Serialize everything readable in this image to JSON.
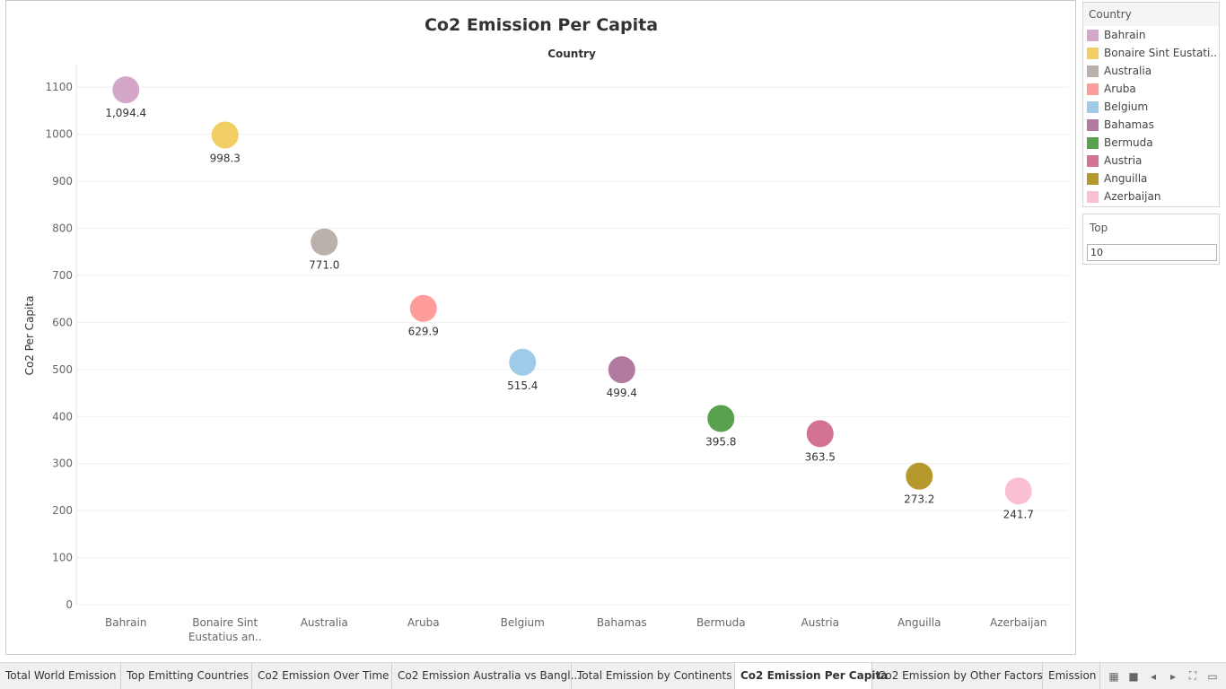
{
  "chart_data": {
    "type": "scatter",
    "title": "Co2 Emission Per Capita",
    "column_header": "Country",
    "ylabel": "Co2 Per Capita",
    "ylim": [
      0,
      1150
    ],
    "yticks": [
      0,
      100,
      200,
      300,
      400,
      500,
      600,
      700,
      800,
      900,
      1000,
      1100
    ],
    "categories": [
      "Bahrain",
      "Bonaire Sint Eustatius an..",
      "Australia",
      "Aruba",
      "Belgium",
      "Bahamas",
      "Bermuda",
      "Austria",
      "Anguilla",
      "Azerbaijan"
    ],
    "values": [
      1094.4,
      998.3,
      771.0,
      629.9,
      515.4,
      499.4,
      395.8,
      363.5,
      273.2,
      241.7
    ],
    "data_labels": [
      "1,094.4",
      "998.3",
      "771.0",
      "629.9",
      "515.4",
      "499.4",
      "395.8",
      "363.5",
      "273.2",
      "241.7"
    ],
    "colors": [
      "#d4a6c8",
      "#f1ce63",
      "#bab0ac",
      "#ff9d9a",
      "#a0cbe8",
      "#b07aa1",
      "#59a14f",
      "#d37295",
      "#b6992d",
      "#fabfd2"
    ],
    "grid": true
  },
  "legend": {
    "title": "Country",
    "items": [
      {
        "label": "Bahrain",
        "color": "#d4a6c8"
      },
      {
        "label": "Bonaire Sint Eustati..",
        "color": "#f1ce63"
      },
      {
        "label": "Australia",
        "color": "#bab0ac"
      },
      {
        "label": "Aruba",
        "color": "#ff9d9a"
      },
      {
        "label": "Belgium",
        "color": "#a0cbe8"
      },
      {
        "label": "Bahamas",
        "color": "#b07aa1"
      },
      {
        "label": "Bermuda",
        "color": "#59a14f"
      },
      {
        "label": "Austria",
        "color": "#d37295"
      },
      {
        "label": "Anguilla",
        "color": "#b6992d"
      },
      {
        "label": "Azerbaijan",
        "color": "#fabfd2"
      }
    ]
  },
  "filter": {
    "title": "Top",
    "value": "10"
  },
  "tabs": [
    {
      "label": "Total World Emission",
      "active": false
    },
    {
      "label": "Top Emitting Countries",
      "active": false
    },
    {
      "label": "Co2 Emission Over Time",
      "active": false
    },
    {
      "label": "Co2 Emission Australia vs Bangl...",
      "active": false
    },
    {
      "label": "Total Emission by Continents",
      "active": false
    },
    {
      "label": "Co2 Emission Per Capita",
      "active": true
    },
    {
      "label": "Co2 Emission by Other Factors",
      "active": false
    },
    {
      "label": "Emission",
      "active": false
    }
  ],
  "tab_controls": [
    {
      "name": "grid-view-icon",
      "glyph": "▦"
    },
    {
      "name": "stop-icon",
      "glyph": "■"
    },
    {
      "name": "previous-icon",
      "glyph": "◂"
    },
    {
      "name": "next-icon",
      "glyph": "▸"
    },
    {
      "name": "fullscreen-icon",
      "glyph": "⛶"
    },
    {
      "name": "present-icon",
      "glyph": "▭"
    }
  ]
}
